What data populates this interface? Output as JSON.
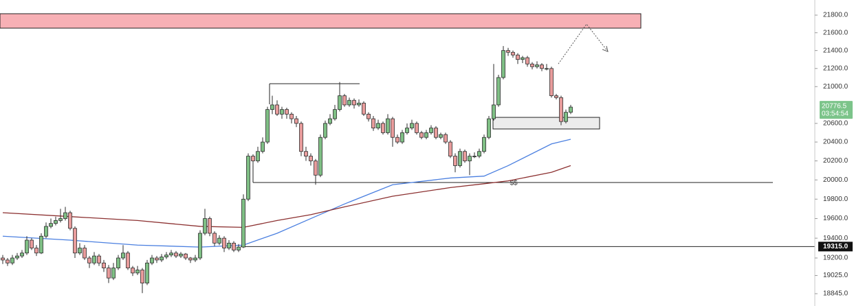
{
  "chart_data": {
    "type": "candlestick",
    "log_scale": true,
    "ylim": [
      18724,
      21973
    ],
    "yticks": [
      {
        "value": 21800,
        "label": "21800.0"
      },
      {
        "value": 21600,
        "label": "21600.0"
      },
      {
        "value": 21400,
        "label": "21400.0"
      },
      {
        "value": 21200,
        "label": "21200.0"
      },
      {
        "value": 21000,
        "label": "21000.0"
      },
      {
        "value": 20600,
        "label": "20600.0"
      },
      {
        "value": 20400,
        "label": "20400.0"
      },
      {
        "value": 20200,
        "label": "20200.0"
      },
      {
        "value": 20000,
        "label": "20000.0"
      },
      {
        "value": 19800,
        "label": "19800.0"
      },
      {
        "value": 19600,
        "label": "19600.0"
      },
      {
        "value": 19400,
        "label": "19400.0"
      },
      {
        "value": 19200,
        "label": "19200.0"
      },
      {
        "value": 19025,
        "label": "19025.0"
      },
      {
        "value": 18845,
        "label": "18845.0"
      }
    ],
    "up_color": "#7fbf85",
    "down_color": "#e89c9c",
    "outline_color": "#2b2b2b",
    "ohlc": [
      [
        19200,
        19230,
        19140,
        19180
      ],
      [
        19180,
        19200,
        19120,
        19150
      ],
      [
        19150,
        19230,
        19130,
        19200
      ],
      [
        19200,
        19250,
        19180,
        19220
      ],
      [
        19220,
        19280,
        19200,
        19250
      ],
      [
        19250,
        19420,
        19230,
        19380
      ],
      [
        19380,
        19400,
        19280,
        19300
      ],
      [
        19300,
        19330,
        19220,
        19250
      ],
      [
        19250,
        19450,
        19240,
        19420
      ],
      [
        19420,
        19560,
        19400,
        19520
      ],
      [
        19520,
        19600,
        19500,
        19550
      ],
      [
        19550,
        19620,
        19530,
        19580
      ],
      [
        19580,
        19700,
        19560,
        19600
      ],
      [
        19600,
        19720,
        19580,
        19660
      ],
      [
        19660,
        19680,
        19480,
        19500
      ],
      [
        19500,
        19520,
        19200,
        19250
      ],
      [
        19250,
        19350,
        19230,
        19300
      ],
      [
        19300,
        19330,
        19180,
        19200
      ],
      [
        19200,
        19220,
        19100,
        19150
      ],
      [
        19150,
        19260,
        19130,
        19220
      ],
      [
        19220,
        19240,
        19120,
        19150
      ],
      [
        19150,
        19180,
        19060,
        19100
      ],
      [
        19100,
        19130,
        18950,
        19000
      ],
      [
        19000,
        19150,
        18980,
        19100
      ],
      [
        19100,
        19230,
        19080,
        19200
      ],
      [
        19200,
        19330,
        19180,
        19250
      ],
      [
        19250,
        19270,
        19080,
        19100
      ],
      [
        19100,
        19120,
        19020,
        19050
      ],
      [
        19050,
        19120,
        19030,
        19080
      ],
      [
        19080,
        19100,
        18850,
        18950
      ],
      [
        18950,
        19180,
        18930,
        19150
      ],
      [
        19150,
        19230,
        19130,
        19200
      ],
      [
        19200,
        19220,
        19150,
        19180
      ],
      [
        19180,
        19240,
        19160,
        19210
      ],
      [
        19210,
        19260,
        19190,
        19230
      ],
      [
        19230,
        19280,
        19210,
        19250
      ],
      [
        19250,
        19270,
        19200,
        19220
      ],
      [
        19220,
        19260,
        19200,
        19240
      ],
      [
        19240,
        19250,
        19180,
        19200
      ],
      [
        19200,
        19210,
        19150,
        19180
      ],
      [
        19180,
        19230,
        19160,
        19200
      ],
      [
        19200,
        19480,
        19180,
        19450
      ],
      [
        19450,
        19700,
        19430,
        19600
      ],
      [
        19600,
        19620,
        19420,
        19450
      ],
      [
        19450,
        19470,
        19320,
        19350
      ],
      [
        19350,
        19430,
        19330,
        19400
      ],
      [
        19400,
        19420,
        19260,
        19300
      ],
      [
        19300,
        19380,
        19280,
        19350
      ],
      [
        19350,
        19370,
        19260,
        19280
      ],
      [
        19280,
        19340,
        19260,
        19310
      ],
      [
        19310,
        19850,
        19300,
        19800
      ],
      [
        19800,
        20280,
        19780,
        20250
      ],
      [
        20250,
        20270,
        20150,
        20200
      ],
      [
        20200,
        20350,
        20180,
        20300
      ],
      [
        20300,
        20450,
        20280,
        20400
      ],
      [
        20400,
        20780,
        20380,
        20750
      ],
      [
        20750,
        20900,
        20700,
        20800
      ],
      [
        20800,
        20850,
        20680,
        20700
      ],
      [
        20700,
        20780,
        20650,
        20750
      ],
      [
        20750,
        20770,
        20650,
        20700
      ],
      [
        20700,
        20720,
        20600,
        20650
      ],
      [
        20650,
        20680,
        20560,
        20600
      ],
      [
        20600,
        20620,
        20250,
        20300
      ],
      [
        20300,
        20350,
        20200,
        20250
      ],
      [
        20250,
        20280,
        20150,
        20200
      ],
      [
        20200,
        20220,
        19950,
        20050
      ],
      [
        20050,
        20480,
        20030,
        20450
      ],
      [
        20450,
        20630,
        20430,
        20600
      ],
      [
        20600,
        20700,
        20580,
        20650
      ],
      [
        20650,
        20800,
        20630,
        20750
      ],
      [
        20750,
        21050,
        20730,
        20900
      ],
      [
        20900,
        20920,
        20780,
        20800
      ],
      [
        20800,
        20880,
        20780,
        20850
      ],
      [
        20850,
        20870,
        20760,
        20800
      ],
      [
        20800,
        20860,
        20780,
        20820
      ],
      [
        20820,
        20840,
        20680,
        20700
      ],
      [
        20700,
        20720,
        20620,
        20650
      ],
      [
        20650,
        20680,
        20520,
        20550
      ],
      [
        20550,
        20640,
        20530,
        20600
      ],
      [
        20600,
        20620,
        20480,
        20500
      ],
      [
        20500,
        20700,
        20480,
        20650
      ],
      [
        20650,
        20670,
        20350,
        20450
      ],
      [
        20450,
        20480,
        20380,
        20400
      ],
      [
        20400,
        20530,
        20380,
        20500
      ],
      [
        20500,
        20600,
        20480,
        20550
      ],
      [
        20550,
        20640,
        20530,
        20600
      ],
      [
        20600,
        20620,
        20480,
        20500
      ],
      [
        20500,
        20520,
        20430,
        20450
      ],
      [
        20450,
        20530,
        20430,
        20500
      ],
      [
        20500,
        20580,
        20480,
        20550
      ],
      [
        20550,
        20570,
        20430,
        20450
      ],
      [
        20450,
        20500,
        20430,
        20480
      ],
      [
        20480,
        20500,
        20380,
        20400
      ],
      [
        20400,
        20420,
        20230,
        20250
      ],
      [
        20250,
        20280,
        20080,
        20150
      ],
      [
        20150,
        20330,
        20130,
        20300
      ],
      [
        20300,
        20320,
        20180,
        20200
      ],
      [
        20200,
        20280,
        20050,
        20250
      ],
      [
        20250,
        20290,
        20230,
        20250
      ],
      [
        20250,
        20330,
        20230,
        20300
      ],
      [
        20300,
        20480,
        20280,
        20450
      ],
      [
        20450,
        20680,
        20430,
        20650
      ],
      [
        20650,
        21250,
        20630,
        20800
      ],
      [
        20800,
        21130,
        20780,
        21100
      ],
      [
        21100,
        21450,
        21080,
        21400
      ],
      [
        21400,
        21430,
        21340,
        21380
      ],
      [
        21380,
        21400,
        21320,
        21350
      ],
      [
        21350,
        21370,
        21250,
        21300
      ],
      [
        21300,
        21340,
        21260,
        21320
      ],
      [
        21320,
        21340,
        21220,
        21250
      ],
      [
        21250,
        21270,
        21190,
        21220
      ],
      [
        21220,
        21280,
        21200,
        21240
      ],
      [
        21240,
        21260,
        21170,
        21200
      ],
      [
        21200,
        21250,
        21180,
        21200
      ],
      [
        21200,
        21220,
        20880,
        20900
      ],
      [
        20900,
        20920,
        20860,
        20880
      ],
      [
        20880,
        20900,
        20580,
        20620
      ],
      [
        20620,
        20750,
        20600,
        20720
      ],
      [
        20720,
        20800,
        20700,
        20776.5
      ]
    ],
    "moving_averages": [
      {
        "color": "#4a7fe0",
        "x": [
          0,
          14,
          28,
          41,
          50,
          57,
          64,
          71,
          81,
          93,
          100,
          105,
          114,
          118
        ],
        "values": [
          19420,
          19380,
          19330,
          19310,
          19330,
          19450,
          19600,
          19750,
          19950,
          20020,
          20040,
          20150,
          20380,
          20430
        ]
      },
      {
        "color": "#8b2f2f",
        "x": [
          0,
          14,
          28,
          41,
          50,
          57,
          64,
          71,
          81,
          93,
          100,
          105,
          114,
          118
        ],
        "values": [
          19660,
          19620,
          19580,
          19520,
          19510,
          19580,
          19640,
          19720,
          19830,
          19920,
          19960,
          19990,
          20080,
          20150
        ]
      }
    ],
    "resistance_zone": [
      21652,
      21816
    ],
    "demand_zone": [
      20540,
      20665
    ],
    "range_high": 21032,
    "liquidity_level": 19973,
    "liquidity_label": "$$",
    "projection": [
      21251,
      21698,
      21389
    ],
    "marked_level": {
      "value": 19315,
      "label": "19315.0"
    },
    "last_price": {
      "value": 20776.5,
      "label": "20776.5",
      "countdown": "03:54:54"
    }
  }
}
